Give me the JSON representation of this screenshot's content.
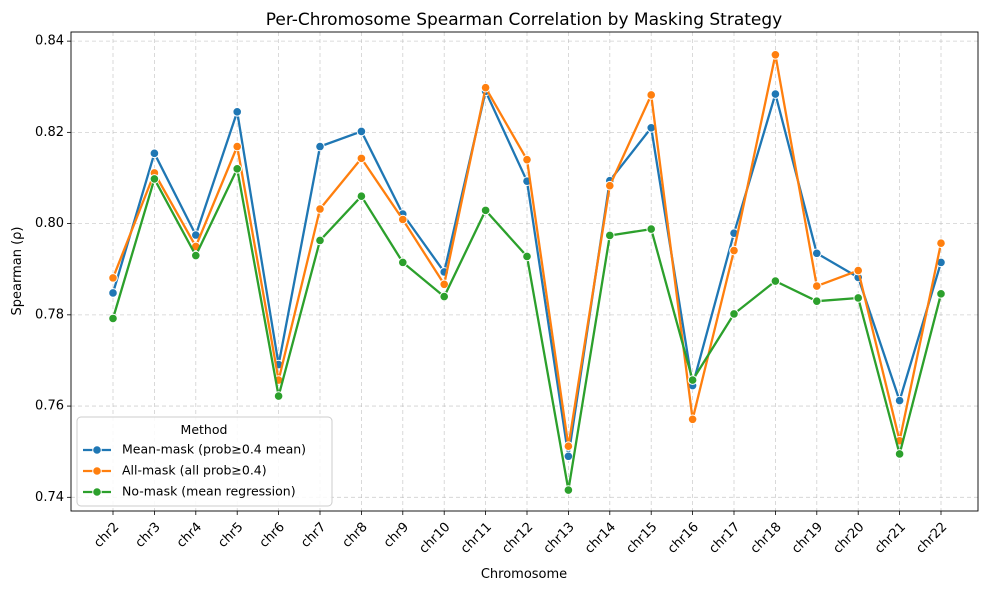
{
  "chart_data": {
    "type": "line",
    "title": "Per-Chromosome Spearman Correlation by Masking Strategy",
    "xlabel": "Chromosome",
    "ylabel": "Spearman (ρ)",
    "ylim": [
      0.737,
      0.842
    ],
    "yticks": [
      "0.74",
      "0.76",
      "0.78",
      "0.80",
      "0.82",
      "0.84"
    ],
    "grid": true,
    "legend_title": "Method",
    "legend_position": "lower-left",
    "categories": [
      "chr2",
      "chr3",
      "chr4",
      "chr5",
      "chr6",
      "chr7",
      "chr8",
      "chr9",
      "chr10",
      "chr11",
      "chr12",
      "chr13",
      "chr14",
      "chr15",
      "chr16",
      "chr17",
      "chr18",
      "chr19",
      "chr20",
      "chr21",
      "chr22"
    ],
    "series": [
      {
        "name": "Mean-mask (prob≥0.4 mean)",
        "color": "#1f77b4",
        "values": [
          0.7848,
          0.8154,
          0.7975,
          0.8245,
          0.7691,
          0.8169,
          0.8202,
          0.8021,
          0.7894,
          0.829,
          0.8093,
          0.749,
          0.8094,
          0.821,
          0.7645,
          0.7979,
          0.8284,
          0.7935,
          0.7882,
          0.7612,
          0.7915
        ]
      },
      {
        "name": "All-mask (all prob≥0.4)",
        "color": "#ff7f0e",
        "values": [
          0.7881,
          0.8111,
          0.795,
          0.8169,
          0.7657,
          0.8032,
          0.8143,
          0.8009,
          0.7867,
          0.8298,
          0.814,
          0.7512,
          0.8083,
          0.8282,
          0.7571,
          0.7941,
          0.837,
          0.7863,
          0.7897,
          0.7524,
          0.7957
        ]
      },
      {
        "name": "No-mask (mean regression)",
        "color": "#2ca02c",
        "values": [
          0.7792,
          0.8098,
          0.793,
          0.812,
          0.7622,
          0.7963,
          0.806,
          0.7915,
          0.784,
          0.8029,
          0.7928,
          0.7416,
          0.7974,
          0.7988,
          0.7657,
          0.7802,
          0.7874,
          0.783,
          0.7837,
          0.7495,
          0.7846
        ]
      }
    ]
  }
}
